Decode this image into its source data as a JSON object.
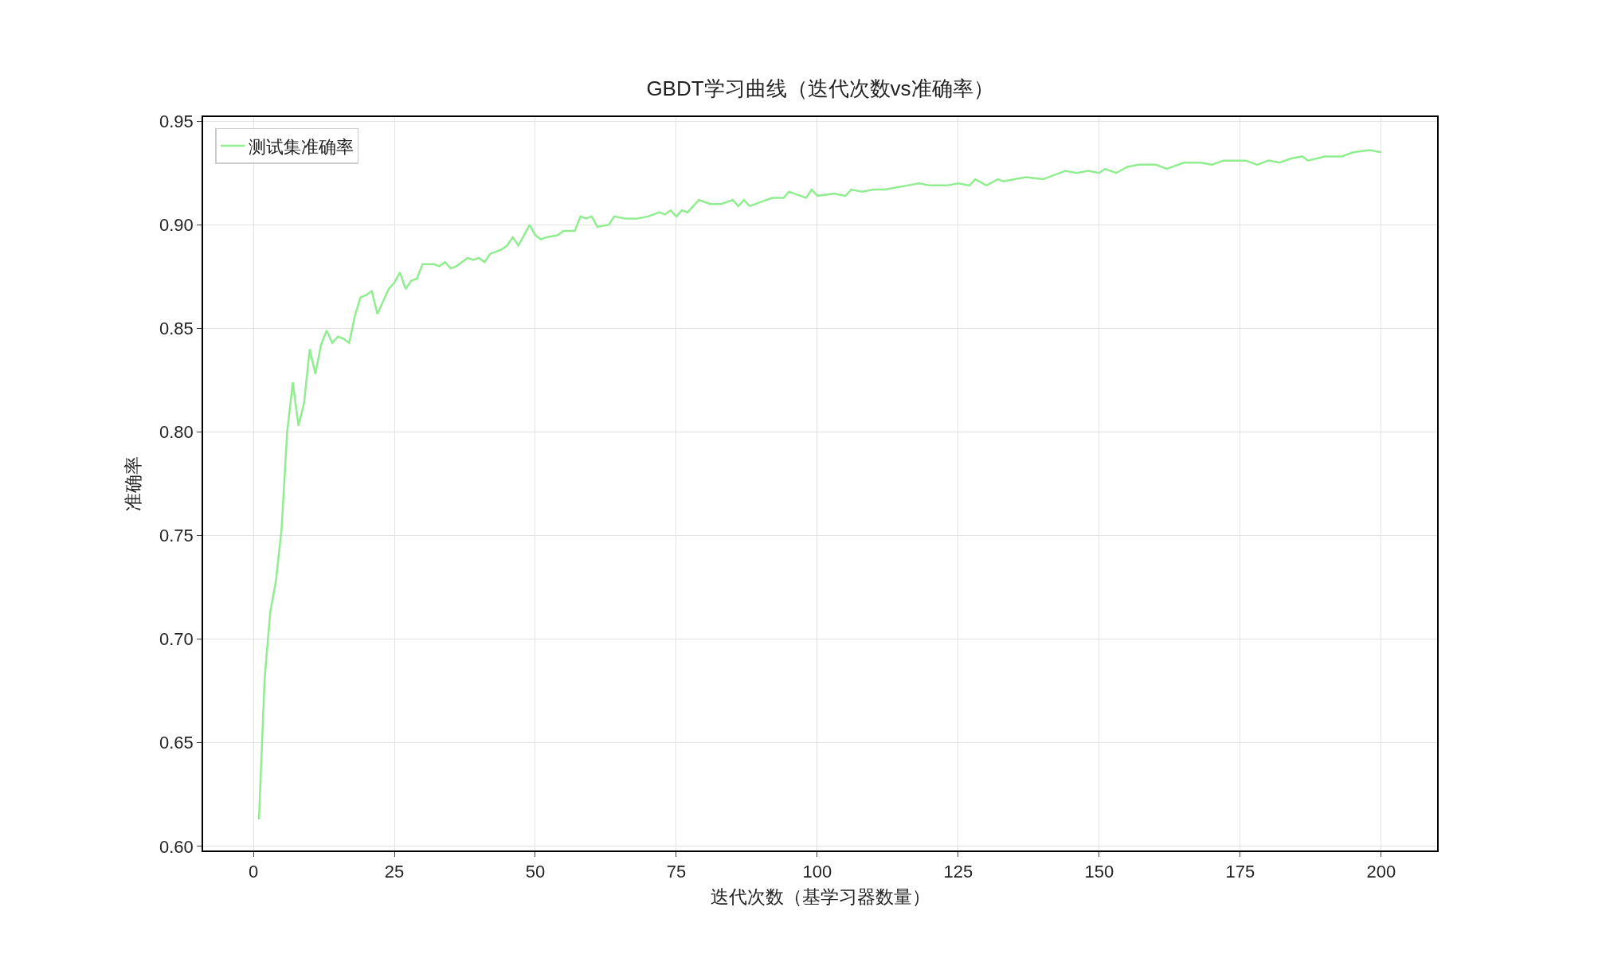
{
  "chart_data": {
    "type": "line",
    "title": "GBDT学习曲线（迭代次数vs准确率）",
    "xlabel": "迭代次数（基学习器数量）",
    "ylabel": "准确率",
    "series": [
      {
        "name": "测试集准确率",
        "color": "#90ee90",
        "x": [
          1,
          2,
          3,
          4,
          5,
          6,
          7,
          8,
          9,
          10,
          11,
          12,
          13,
          14,
          15,
          16,
          17,
          18,
          19,
          20,
          21,
          22,
          23,
          24,
          25,
          26,
          27,
          28,
          29,
          30,
          32,
          33,
          34,
          35,
          36,
          38,
          39,
          40,
          41,
          42,
          44,
          45,
          46,
          47,
          49,
          50,
          51,
          52,
          54,
          55,
          57,
          58,
          59,
          60,
          61,
          63,
          64,
          66,
          68,
          70,
          72,
          73,
          74,
          75,
          76,
          77,
          79,
          81,
          83,
          85,
          86,
          87,
          88,
          90,
          92,
          94,
          95,
          97,
          98,
          99,
          100,
          103,
          105,
          106,
          108,
          110,
          112,
          114,
          116,
          118,
          120,
          123,
          125,
          127,
          128,
          130,
          132,
          133,
          135,
          137,
          140,
          142,
          144,
          146,
          148,
          150,
          151,
          153,
          155,
          157,
          160,
          162,
          165,
          168,
          170,
          172,
          174,
          176,
          178,
          180,
          182,
          184,
          186,
          187,
          190,
          193,
          195,
          198,
          200
        ],
        "values": [
          0.613,
          0.681,
          0.713,
          0.728,
          0.753,
          0.8,
          0.824,
          0.803,
          0.814,
          0.84,
          0.828,
          0.842,
          0.849,
          0.843,
          0.846,
          0.845,
          0.843,
          0.856,
          0.865,
          0.866,
          0.868,
          0.857,
          0.863,
          0.869,
          0.872,
          0.877,
          0.869,
          0.873,
          0.874,
          0.881,
          0.881,
          0.88,
          0.882,
          0.879,
          0.88,
          0.884,
          0.883,
          0.884,
          0.882,
          0.886,
          0.888,
          0.89,
          0.894,
          0.89,
          0.9,
          0.895,
          0.893,
          0.894,
          0.895,
          0.897,
          0.897,
          0.904,
          0.903,
          0.904,
          0.899,
          0.9,
          0.904,
          0.903,
          0.903,
          0.904,
          0.906,
          0.905,
          0.907,
          0.904,
          0.907,
          0.906,
          0.912,
          0.91,
          0.91,
          0.912,
          0.909,
          0.912,
          0.909,
          0.911,
          0.913,
          0.913,
          0.916,
          0.914,
          0.913,
          0.917,
          0.914,
          0.915,
          0.914,
          0.917,
          0.916,
          0.917,
          0.917,
          0.918,
          0.919,
          0.92,
          0.919,
          0.919,
          0.92,
          0.919,
          0.922,
          0.919,
          0.922,
          0.921,
          0.922,
          0.923,
          0.922,
          0.924,
          0.926,
          0.925,
          0.926,
          0.925,
          0.927,
          0.925,
          0.928,
          0.929,
          0.929,
          0.927,
          0.93,
          0.93,
          0.929,
          0.931,
          0.931,
          0.931,
          0.929,
          0.931,
          0.93,
          0.932,
          0.933,
          0.931,
          0.933,
          0.933,
          0.935,
          0.936,
          0.935
        ]
      }
    ],
    "xlim": [
      -8.9,
      209.9
    ],
    "xticks": [
      0,
      25,
      50,
      75,
      100,
      125,
      150,
      175,
      200
    ],
    "ylim": [
      0.598,
      0.952
    ],
    "yticks": [
      {
        "value": 0.6,
        "label": "0.60"
      },
      {
        "value": 0.65,
        "label": "0.65"
      },
      {
        "value": 0.7,
        "label": "0.70"
      },
      {
        "value": 0.75,
        "label": "0.75"
      },
      {
        "value": 0.8,
        "label": "0.80"
      },
      {
        "value": 0.85,
        "label": "0.85"
      },
      {
        "value": 0.9,
        "label": "0.90"
      },
      {
        "value": 0.95,
        "label": "0.95"
      }
    ],
    "grid": true,
    "legend": "top left",
    "line_style": "solid",
    "marker": "none"
  }
}
